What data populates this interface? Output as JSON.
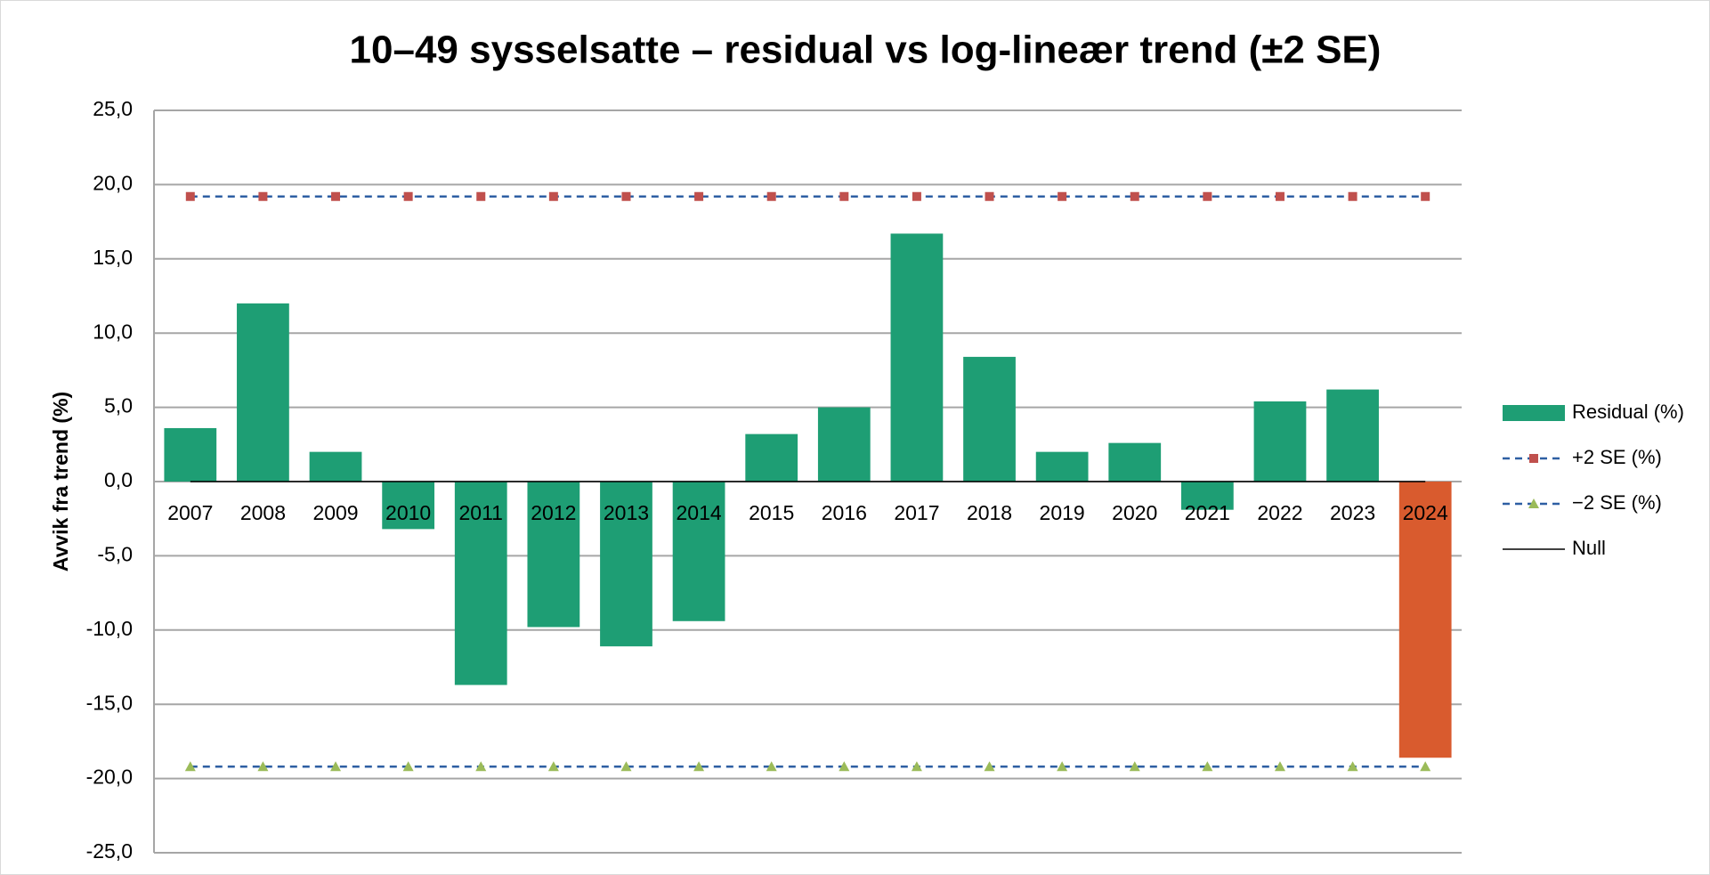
{
  "chart_data": {
    "type": "bar",
    "title": "10–49 sysselsatte – residual vs log-lineær trend (±2 SE)",
    "y_label": "Avvik fra trend (%)",
    "categories": [
      "2007",
      "2008",
      "2009",
      "2010",
      "2011",
      "2012",
      "2013",
      "2014",
      "2015",
      "2016",
      "2017",
      "2018",
      "2019",
      "2020",
      "2021",
      "2022",
      "2023",
      "2024"
    ],
    "series": [
      {
        "name": "Residual (%)",
        "type": "bar",
        "color": "#1e9e74",
        "point_colors": [
          "#1e9e74",
          "#1e9e74",
          "#1e9e74",
          "#1e9e74",
          "#1e9e74",
          "#1e9e74",
          "#1e9e74",
          "#1e9e74",
          "#1e9e74",
          "#1e9e74",
          "#1e9e74",
          "#1e9e74",
          "#1e9e74",
          "#1e9e74",
          "#1e9e74",
          "#1e9e74",
          "#1e9e74",
          "#d95b2e"
        ],
        "values": [
          3.6,
          12.0,
          2.0,
          -3.2,
          -13.7,
          -9.8,
          -11.1,
          -9.4,
          3.2,
          5.0,
          16.7,
          8.4,
          2.0,
          2.6,
          -1.9,
          5.4,
          6.2,
          -18.6
        ]
      },
      {
        "name": "+2 SE (%)",
        "type": "line",
        "color": "#2e5fa3",
        "marker": "square",
        "marker_color": "#c0504d",
        "dashed": true,
        "values": [
          19.2,
          19.2,
          19.2,
          19.2,
          19.2,
          19.2,
          19.2,
          19.2,
          19.2,
          19.2,
          19.2,
          19.2,
          19.2,
          19.2,
          19.2,
          19.2,
          19.2,
          19.2
        ]
      },
      {
        "name": "−2 SE (%)",
        "type": "line",
        "color": "#2e5fa3",
        "marker": "triangle",
        "marker_color": "#9bbb59",
        "dashed": true,
        "values": [
          -19.2,
          -19.2,
          -19.2,
          -19.2,
          -19.2,
          -19.2,
          -19.2,
          -19.2,
          -19.2,
          -19.2,
          -19.2,
          -19.2,
          -19.2,
          -19.2,
          -19.2,
          -19.2,
          -19.2,
          -19.2
        ]
      },
      {
        "name": "Null",
        "type": "line",
        "color": "#000000",
        "dashed": false,
        "values": [
          0,
          0,
          0,
          0,
          0,
          0,
          0,
          0,
          0,
          0,
          0,
          0,
          0,
          0,
          0,
          0,
          0,
          0
        ]
      }
    ],
    "ylim": [
      -25,
      25
    ],
    "yticks": [
      {
        "value": -25,
        "label": "-25,0"
      },
      {
        "value": -20,
        "label": "-20,0"
      },
      {
        "value": -15,
        "label": "-15,0"
      },
      {
        "value": -10,
        "label": "-10,0"
      },
      {
        "value": -5,
        "label": "-5,0"
      },
      {
        "value": 0,
        "label": "0,0"
      },
      {
        "value": 5,
        "label": "5,0"
      },
      {
        "value": 10,
        "label": "10,0"
      },
      {
        "value": 15,
        "label": "15,0"
      },
      {
        "value": 20,
        "label": "20,0"
      },
      {
        "value": 25,
        "label": "25,0"
      }
    ],
    "grid": true,
    "legend": "right"
  }
}
